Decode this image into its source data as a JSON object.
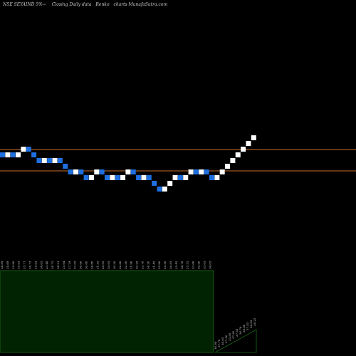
{
  "header": {
    "symbol": "NSE SEYAIND 5%~",
    "subtitle": "Closing Daily data",
    "chart_name": "Renko",
    "site": "charts MunafaSutra.com"
  },
  "colors": {
    "background": "#000000",
    "up_brick": "#ffffff",
    "down_brick": "#1e6fe0",
    "ref_line": "#c8702a",
    "volume_fill": "#012301",
    "volume_fill_recent": "#000000",
    "volume_stroke": "#1b6b1b"
  },
  "chart_data": {
    "type": "renko",
    "title": "",
    "xlabel": "",
    "ylabel": "",
    "reference_levels": [
      37.1,
      35.6
    ],
    "bricks": [
      {
        "dir": "down",
        "close": 36.5
      },
      {
        "dir": "up",
        "close": 36.9
      },
      {
        "dir": "down",
        "close": 36.5
      },
      {
        "dir": "up",
        "close": 36.9
      },
      {
        "dir": "up",
        "close": 37.3
      },
      {
        "dir": "down",
        "close": 36.9
      },
      {
        "dir": "down",
        "close": 36.5
      },
      {
        "dir": "down",
        "close": 36.1
      },
      {
        "dir": "up",
        "close": 36.5
      },
      {
        "dir": "down",
        "close": 36.1
      },
      {
        "dir": "up",
        "close": 36.5
      },
      {
        "dir": "down",
        "close": 36.1
      },
      {
        "dir": "down",
        "close": 35.7
      },
      {
        "dir": "down",
        "close": 35.3
      },
      {
        "dir": "up",
        "close": 35.7
      },
      {
        "dir": "down",
        "close": 35.3
      },
      {
        "dir": "down",
        "close": 34.9
      },
      {
        "dir": "up",
        "close": 35.3
      },
      {
        "dir": "up",
        "close": 35.7
      },
      {
        "dir": "down",
        "close": 35.3
      },
      {
        "dir": "down",
        "close": 34.9
      },
      {
        "dir": "up",
        "close": 35.3
      },
      {
        "dir": "down",
        "close": 34.9
      },
      {
        "dir": "up",
        "close": 35.3
      },
      {
        "dir": "up",
        "close": 35.7
      },
      {
        "dir": "down",
        "close": 35.3
      },
      {
        "dir": "down",
        "close": 34.9
      },
      {
        "dir": "up",
        "close": 35.3
      },
      {
        "dir": "down",
        "close": 34.9
      },
      {
        "dir": "down",
        "close": 34.5
      },
      {
        "dir": "down",
        "close": 34.1
      },
      {
        "dir": "up",
        "close": 34.5
      },
      {
        "dir": "up",
        "close": 34.9
      },
      {
        "dir": "up",
        "close": 35.3
      },
      {
        "dir": "down",
        "close": 34.9
      },
      {
        "dir": "up",
        "close": 35.3
      },
      {
        "dir": "up",
        "close": 35.7
      },
      {
        "dir": "down",
        "close": 35.3
      },
      {
        "dir": "up",
        "close": 35.7
      },
      {
        "dir": "down",
        "close": 35.3
      },
      {
        "dir": "down",
        "close": 34.9
      },
      {
        "dir": "up",
        "close": 35.3
      },
      {
        "dir": "up",
        "close": 35.7
      },
      {
        "dir": "up",
        "close": 36.1
      },
      {
        "dir": "up",
        "close": 36.5
      },
      {
        "dir": "up",
        "close": 36.9
      },
      {
        "dir": "up",
        "close": 37.3
      },
      {
        "dir": "up",
        "close": 37.7
      },
      {
        "dir": "up",
        "close": 38.1
      }
    ],
    "tick_labels": [
      "34.69",
      "34.69",
      "35.80",
      "35.93",
      "35.71",
      "34.73",
      "35.93",
      "34.65",
      "33.48",
      "34.75",
      "34.21",
      "35.94",
      "37.29",
      "37.65",
      "36.80",
      "36.80",
      "38.80",
      "31.55",
      "28.95",
      "29.95",
      "30.30",
      "32.80",
      "32.50",
      "31.90",
      "32.25",
      "33.70",
      "34.20",
      "31.45",
      "35.80",
      "35.50",
      "36.85",
      "35.45",
      "34.78",
      "35.55",
      "33.66",
      "32.20",
      "33.65",
      "34.05"
    ],
    "tick_labels_recent": [
      "36.80",
      "37.70",
      "36.65",
      "37.50",
      "33.85",
      "37.60",
      "37.63",
      "36.76",
      "38.80",
      "37.45",
      "38.09",
      "38.25"
    ],
    "grid": false,
    "legend": "none"
  }
}
